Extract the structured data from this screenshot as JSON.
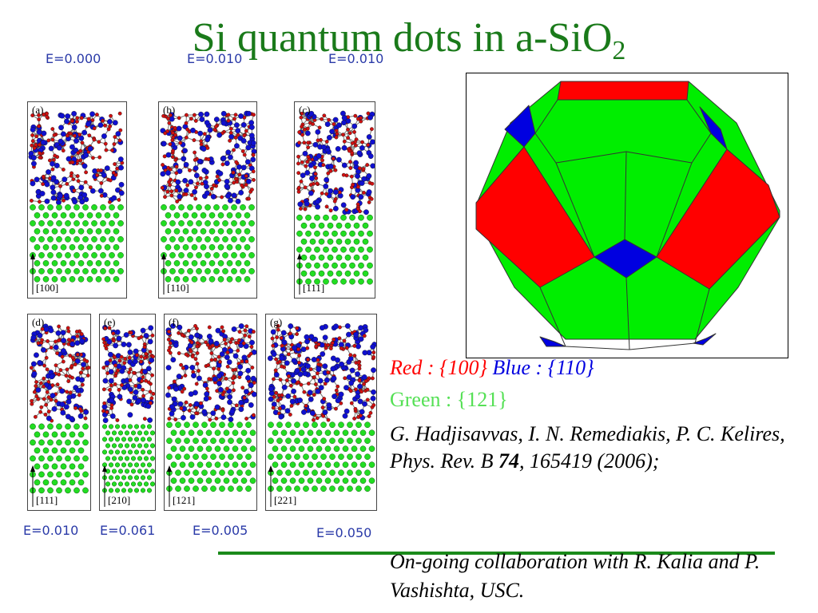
{
  "slide": {
    "title_main": "Si quantum dots in a-SiO",
    "title_sub": "2"
  },
  "energy_labels": {
    "a": "E=0.000",
    "b": "E=0.010",
    "c": "E=0.010",
    "d": "E=0.010",
    "e": "E=0.061",
    "f": "E=0.005",
    "g": "E=0.050"
  },
  "panels": [
    {
      "letter": "(a)",
      "direction": "[100]"
    },
    {
      "letter": "(b)",
      "direction": "[110]"
    },
    {
      "letter": "(c)",
      "direction": "[111]"
    },
    {
      "letter": "(d)",
      "direction": "[111]"
    },
    {
      "letter": "(e)",
      "direction": "[210]"
    },
    {
      "letter": "(f)",
      "direction": "[121]"
    },
    {
      "letter": "(g)",
      "direction": "[221]"
    }
  ],
  "legend": {
    "red": "Red : {100}",
    "blue": "Blue : {110}",
    "green": "Green : {121}",
    "colors": {
      "red": "#ff0000",
      "blue": "#0000e0",
      "green": "#00ee00"
    }
  },
  "citation": {
    "authors": "G. Hadjisavvas, I. N. Remediakis, P. C. Kelires, Phys. Rev. B ",
    "volume": "74",
    "rest": ", 165419 (2006);"
  },
  "collaboration": "On-going collaboration with R. Kalia and P. Vashishta, USC."
}
